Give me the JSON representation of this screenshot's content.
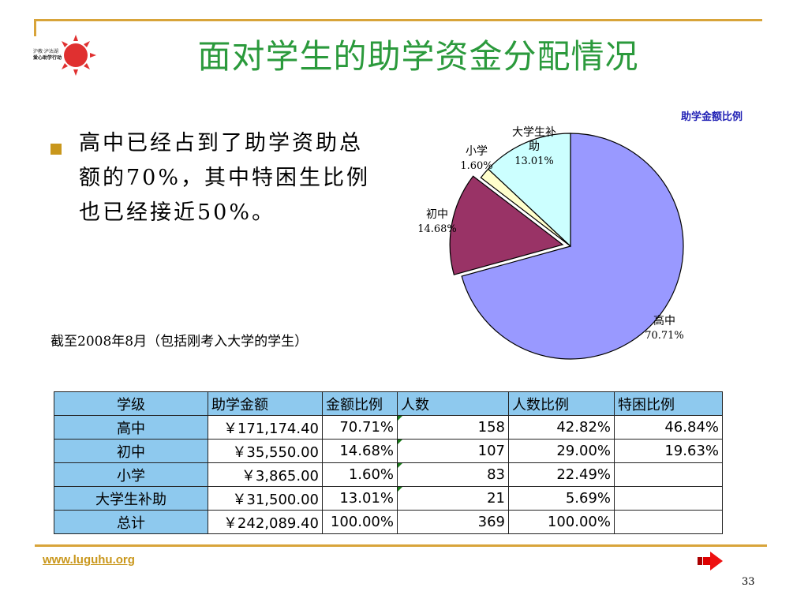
{
  "slide": {
    "title": "面对学生的助学资金分配情况",
    "logo_text_line1": "沪教·泸沽湖",
    "logo_text_line2": "爱心助学行动",
    "bullet_text": "高中已经占到了助学资助总额的70%，其中特困生比例也已经接近50%。",
    "note": "截至2008年8月（包括刚考入大学的学生）",
    "footer_url": "www.luguhu.org",
    "page_number": "33"
  },
  "colors": {
    "title": "#2b9a3c",
    "accent_rule": "#d8a43a",
    "table_header": "#8ec9ee",
    "chart_title": "#1f1fb4"
  },
  "chart_data": {
    "type": "pie",
    "title": "助学金额比例",
    "slices": [
      {
        "label": "高中",
        "pct_label": "70.71%",
        "value": 70.71,
        "color": "#9999ff"
      },
      {
        "label": "初中",
        "pct_label": "14.68%",
        "value": 14.68,
        "color": "#993366"
      },
      {
        "label": "小学",
        "pct_label": "1.60%",
        "value": 1.6,
        "color": "#ffffcc"
      },
      {
        "label": "大学生补助",
        "pct_label": "13.01%",
        "value": 13.01,
        "color": "#ccffff"
      }
    ]
  },
  "table": {
    "headers": [
      "学级",
      "助学金额",
      "金额比例",
      "人数",
      "人数比例",
      "特困比例"
    ],
    "rows": [
      [
        "高中",
        "￥171,174.40",
        "70.71%",
        "158",
        "42.82%",
        "46.84%"
      ],
      [
        "初中",
        "￥35,550.00",
        "14.68%",
        "107",
        "29.00%",
        "19.63%"
      ],
      [
        "小学",
        "￥3,865.00",
        "1.60%",
        "83",
        "22.49%",
        ""
      ],
      [
        "大学生补助",
        "￥31,500.00",
        "13.01%",
        "21",
        "5.69%",
        ""
      ],
      [
        "总计",
        "￥242,089.40",
        "100.00%",
        "369",
        "100.00%",
        ""
      ]
    ]
  }
}
